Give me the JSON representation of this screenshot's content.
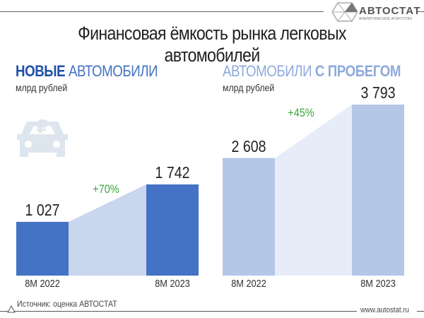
{
  "logo": {
    "name": "АВТОСТАТ",
    "tagline": "АНАЛИТИЧЕСКОЕ АГЕНТСТВО"
  },
  "title": "Финансовая ёмкость рынка легковых автомобилей",
  "colors": {
    "new_bar": "#4472c4",
    "new_area": "#c9d6ee",
    "used_bar": "#b4c7e7",
    "used_area": "#e7edf8",
    "growth": "#3aa63a"
  },
  "chart_data": [
    {
      "type": "bar",
      "title_bold": "НОВЫЕ",
      "title_rest": "АВТОМОБИЛИ",
      "ylabel": "млрд рублей",
      "categories": [
        "8M 2022",
        "8M 2023"
      ],
      "values": [
        1027,
        1742
      ],
      "labels": [
        "1 027",
        "1 742"
      ],
      "growth": "+70%"
    },
    {
      "type": "bar",
      "title_rest": "АВТОМОБИЛИ",
      "title_bold": "С ПРОБЕГОМ",
      "ylabel": "млрд рублей",
      "categories": [
        "8M 2022",
        "8M 2023"
      ],
      "values": [
        2608,
        3793
      ],
      "labels": [
        "2 608",
        "3 793"
      ],
      "growth": "+45%"
    }
  ],
  "footer": {
    "source": "Источник: оценка АВТОСТАТ",
    "site": "www.autostat.ru"
  }
}
